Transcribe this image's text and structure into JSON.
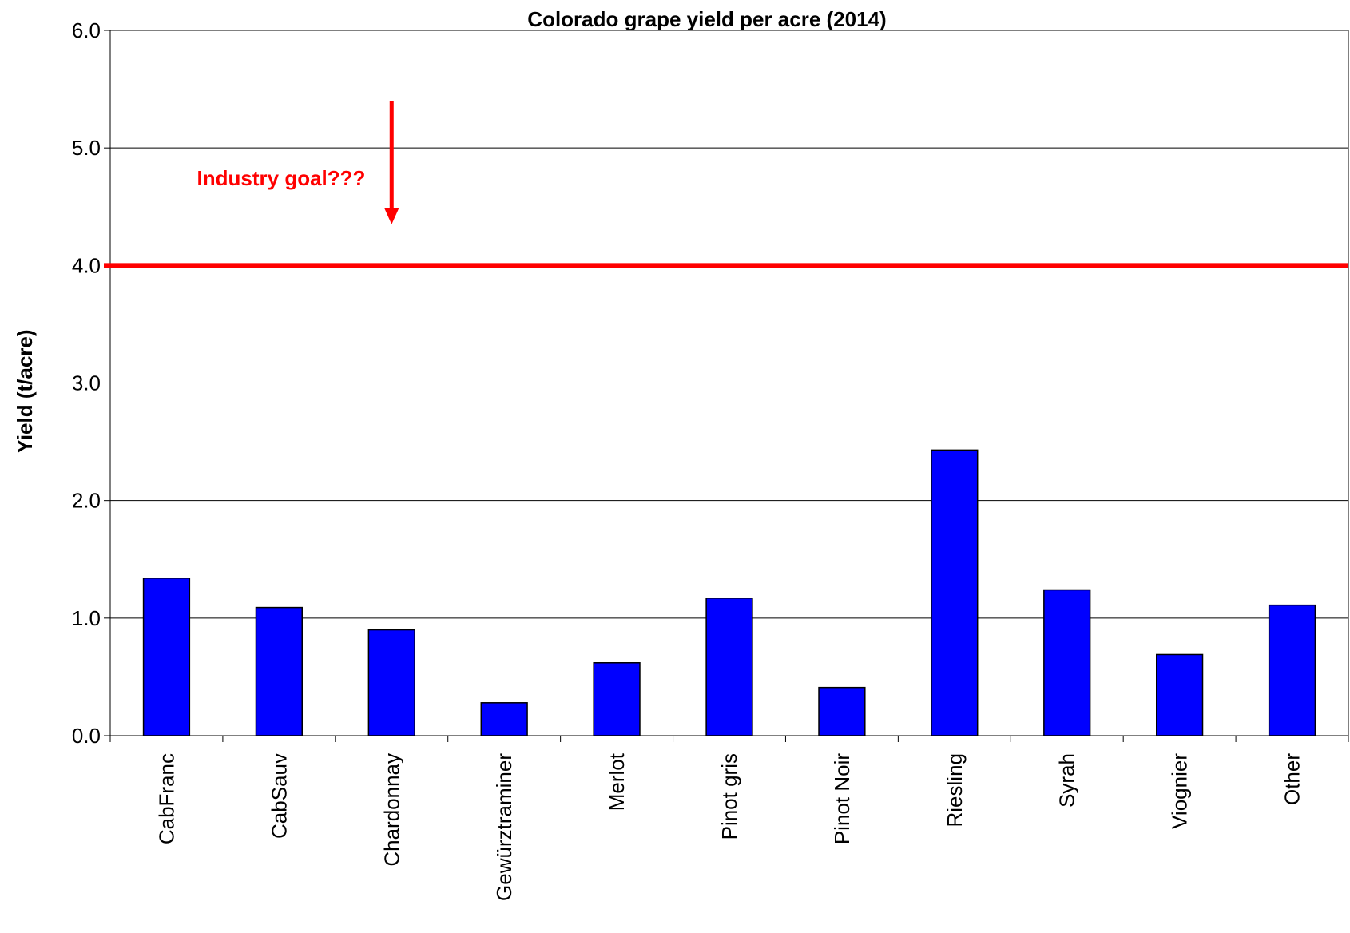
{
  "chart_data": {
    "type": "bar",
    "title": "Colorado grape yield per acre (2014)",
    "xlabel": "",
    "ylabel": "Yield (t/acre)",
    "ylim": [
      0,
      6
    ],
    "yticks": [
      "0.0",
      "1.0",
      "2.0",
      "3.0",
      "4.0",
      "5.0",
      "6.0"
    ],
    "grid": true,
    "categories": [
      "CabFranc",
      "CabSauv",
      "Chardonnay",
      "Gewürztraminer",
      "Merlot",
      "Pinot gris",
      "Pinot Noir",
      "Riesling",
      "Syrah",
      "Viognier",
      "Other"
    ],
    "values": [
      1.34,
      1.09,
      0.9,
      0.28,
      0.62,
      1.17,
      0.41,
      2.43,
      1.24,
      0.69,
      1.11
    ],
    "bar_color": "#0000ff",
    "reference_line": {
      "value": 4.0,
      "color": "#ff0000"
    },
    "annotation": {
      "text": "Industry goal???",
      "color": "#ff0000",
      "arrow_from": 5.4,
      "arrow_to": 4.35
    }
  }
}
